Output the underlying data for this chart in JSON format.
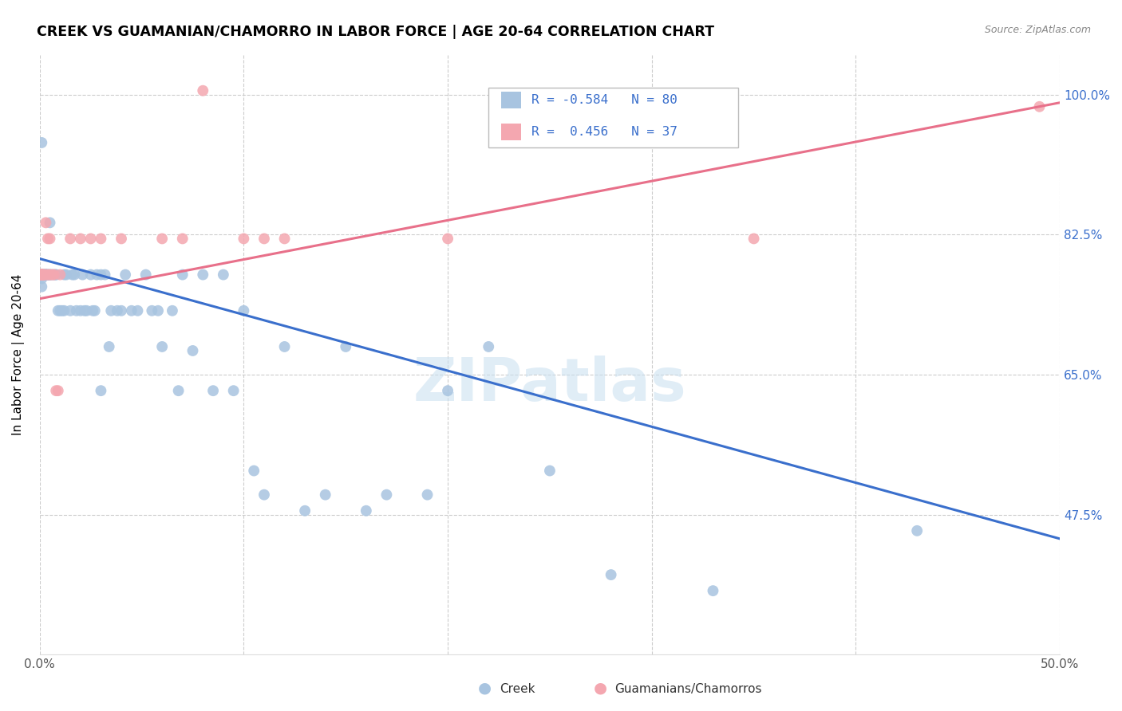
{
  "title": "CREEK VS GUAMANIAN/CHAMORRO IN LABOR FORCE | AGE 20-64 CORRELATION CHART",
  "source": "Source: ZipAtlas.com",
  "ylabel": "In Labor Force | Age 20-64",
  "xmin": 0.0,
  "xmax": 0.5,
  "ymin": 0.3,
  "ymax": 1.05,
  "yticks": [
    0.475,
    0.65,
    0.825,
    1.0
  ],
  "ytick_labels": [
    "47.5%",
    "65.0%",
    "82.5%",
    "100.0%"
  ],
  "xticks": [
    0.0,
    0.1,
    0.2,
    0.3,
    0.4,
    0.5
  ],
  "xtick_labels": [
    "0.0%",
    "",
    "",
    "",
    "",
    "50.0%"
  ],
  "creek_color": "#a8c4e0",
  "guam_color": "#f4a7b0",
  "creek_line_color": "#3a6fcc",
  "guam_line_color": "#e8708a",
  "R_creek": -0.584,
  "N_creek": 80,
  "R_guam": 0.456,
  "N_guam": 37,
  "watermark": "ZIPatlas",
  "creek_trendline_x": [
    0.0,
    0.5
  ],
  "creek_trendline_y": [
    0.795,
    0.445
  ],
  "guam_trendline_x": [
    0.0,
    0.5
  ],
  "guam_trendline_y": [
    0.745,
    0.99
  ],
  "creek_points": [
    [
      0.001,
      0.94
    ],
    [
      0.001,
      0.775
    ],
    [
      0.001,
      0.76
    ],
    [
      0.001,
      0.77
    ],
    [
      0.002,
      0.775
    ],
    [
      0.002,
      0.775
    ],
    [
      0.002,
      0.775
    ],
    [
      0.002,
      0.775
    ],
    [
      0.003,
      0.775
    ],
    [
      0.003,
      0.775
    ],
    [
      0.003,
      0.775
    ],
    [
      0.003,
      0.775
    ],
    [
      0.003,
      0.775
    ],
    [
      0.003,
      0.775
    ],
    [
      0.004,
      0.775
    ],
    [
      0.004,
      0.775
    ],
    [
      0.004,
      0.775
    ],
    [
      0.005,
      0.775
    ],
    [
      0.005,
      0.84
    ],
    [
      0.005,
      0.775
    ],
    [
      0.006,
      0.775
    ],
    [
      0.007,
      0.775
    ],
    [
      0.008,
      0.775
    ],
    [
      0.008,
      0.775
    ],
    [
      0.009,
      0.73
    ],
    [
      0.01,
      0.73
    ],
    [
      0.011,
      0.73
    ],
    [
      0.012,
      0.775
    ],
    [
      0.012,
      0.73
    ],
    [
      0.013,
      0.775
    ],
    [
      0.015,
      0.73
    ],
    [
      0.016,
      0.775
    ],
    [
      0.017,
      0.775
    ],
    [
      0.018,
      0.73
    ],
    [
      0.02,
      0.73
    ],
    [
      0.021,
      0.775
    ],
    [
      0.022,
      0.73
    ],
    [
      0.023,
      0.73
    ],
    [
      0.025,
      0.775
    ],
    [
      0.026,
      0.73
    ],
    [
      0.027,
      0.73
    ],
    [
      0.028,
      0.775
    ],
    [
      0.03,
      0.775
    ],
    [
      0.03,
      0.63
    ],
    [
      0.032,
      0.775
    ],
    [
      0.034,
      0.685
    ],
    [
      0.035,
      0.73
    ],
    [
      0.038,
      0.73
    ],
    [
      0.04,
      0.73
    ],
    [
      0.042,
      0.775
    ],
    [
      0.045,
      0.73
    ],
    [
      0.048,
      0.73
    ],
    [
      0.052,
      0.775
    ],
    [
      0.055,
      0.73
    ],
    [
      0.058,
      0.73
    ],
    [
      0.06,
      0.685
    ],
    [
      0.065,
      0.73
    ],
    [
      0.068,
      0.63
    ],
    [
      0.07,
      0.775
    ],
    [
      0.075,
      0.68
    ],
    [
      0.08,
      0.775
    ],
    [
      0.085,
      0.63
    ],
    [
      0.09,
      0.775
    ],
    [
      0.095,
      0.63
    ],
    [
      0.1,
      0.73
    ],
    [
      0.105,
      0.53
    ],
    [
      0.11,
      0.5
    ],
    [
      0.12,
      0.685
    ],
    [
      0.13,
      0.48
    ],
    [
      0.14,
      0.5
    ],
    [
      0.15,
      0.685
    ],
    [
      0.16,
      0.48
    ],
    [
      0.17,
      0.5
    ],
    [
      0.19,
      0.5
    ],
    [
      0.2,
      0.63
    ],
    [
      0.22,
      0.685
    ],
    [
      0.25,
      0.53
    ],
    [
      0.28,
      0.4
    ],
    [
      0.33,
      0.38
    ],
    [
      0.43,
      0.455
    ]
  ],
  "guam_points": [
    [
      0.001,
      0.775
    ],
    [
      0.001,
      0.775
    ],
    [
      0.001,
      0.775
    ],
    [
      0.001,
      0.775
    ],
    [
      0.001,
      0.775
    ],
    [
      0.001,
      0.775
    ],
    [
      0.001,
      0.775
    ],
    [
      0.001,
      0.775
    ],
    [
      0.001,
      0.775
    ],
    [
      0.002,
      0.775
    ],
    [
      0.002,
      0.775
    ],
    [
      0.002,
      0.775
    ],
    [
      0.003,
      0.84
    ],
    [
      0.003,
      0.775
    ],
    [
      0.004,
      0.775
    ],
    [
      0.004,
      0.82
    ],
    [
      0.005,
      0.775
    ],
    [
      0.005,
      0.82
    ],
    [
      0.006,
      0.775
    ],
    [
      0.007,
      0.775
    ],
    [
      0.008,
      0.63
    ],
    [
      0.009,
      0.63
    ],
    [
      0.01,
      0.775
    ],
    [
      0.015,
      0.82
    ],
    [
      0.02,
      0.82
    ],
    [
      0.025,
      0.82
    ],
    [
      0.03,
      0.82
    ],
    [
      0.04,
      0.82
    ],
    [
      0.06,
      0.82
    ],
    [
      0.07,
      0.82
    ],
    [
      0.08,
      1.005
    ],
    [
      0.1,
      0.82
    ],
    [
      0.11,
      0.82
    ],
    [
      0.12,
      0.82
    ],
    [
      0.2,
      0.82
    ],
    [
      0.35,
      0.82
    ],
    [
      0.49,
      0.985
    ]
  ]
}
